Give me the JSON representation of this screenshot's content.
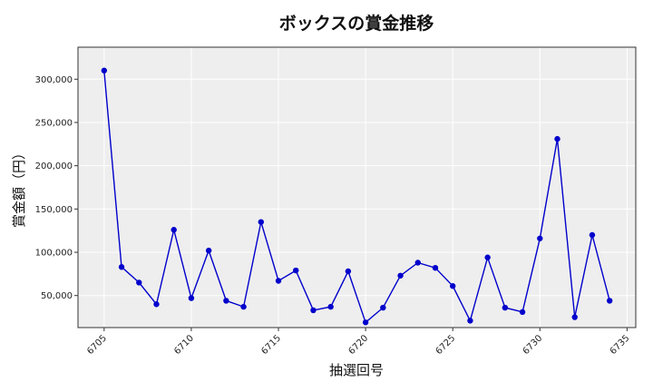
{
  "chart_data": {
    "type": "line",
    "title": "ボックスの賞金推移",
    "xlabel": "抽選回号",
    "ylabel": "賞金額（円）",
    "x": [
      6705,
      6706,
      6707,
      6708,
      6709,
      6710,
      6711,
      6712,
      6713,
      6714,
      6715,
      6716,
      6717,
      6718,
      6719,
      6720,
      6721,
      6722,
      6723,
      6724,
      6725,
      6726,
      6727,
      6728,
      6729,
      6730,
      6731,
      6732,
      6733,
      6734
    ],
    "series": [
      {
        "values": [
          310000,
          83000,
          65000,
          40000,
          126000,
          47000,
          102000,
          44000,
          37000,
          135000,
          67000,
          79000,
          33000,
          37000,
          78000,
          19000,
          36000,
          73000,
          88000,
          82000,
          61000,
          21000,
          94000,
          36000,
          31000,
          116000,
          231000,
          25000,
          120000,
          44000
        ]
      }
    ],
    "xlim": [
      6703.5,
      6735.5
    ],
    "ylim": [
      13000,
      337000
    ],
    "x_ticks": [
      "6705",
      "6710",
      "6715",
      "6720",
      "6725",
      "6730",
      "6735"
    ],
    "y_ticks": [
      "50,000",
      "100,000",
      "150,000",
      "200,000",
      "250,000",
      "300,000"
    ],
    "grid": true,
    "colors": {
      "line": "#0000cc",
      "marker": "#0000cc",
      "plot_bg": "#eeeeee",
      "grid": "#ffffff"
    }
  }
}
